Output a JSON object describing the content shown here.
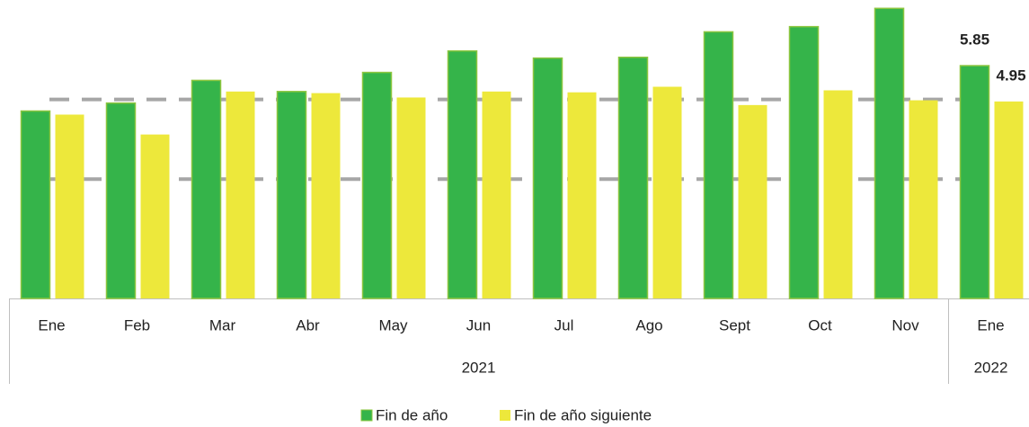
{
  "chart_data": {
    "type": "bar",
    "categories": [
      "Ene",
      "Feb",
      "Mar",
      "Abr",
      "May",
      "Jun",
      "Jul",
      "Ago",
      "Sept",
      "Oct",
      "Nov",
      "Ene"
    ],
    "groups": [
      {
        "label": "2021",
        "span": 11
      },
      {
        "label": "2022",
        "span": 1
      }
    ],
    "series": [
      {
        "name": "Fin de año",
        "color": "#35b44a",
        "values": [
          4.71,
          4.91,
          5.48,
          5.2,
          5.68,
          6.22,
          6.04,
          6.06,
          6.7,
          6.83,
          7.29,
          5.85
        ],
        "value_labels": [
          null,
          null,
          null,
          null,
          null,
          null,
          null,
          null,
          null,
          null,
          null,
          "5.85"
        ]
      },
      {
        "name": "Fin de año siguiente",
        "color": "#ede83b",
        "values": [
          4.62,
          4.12,
          5.2,
          5.16,
          5.05,
          5.2,
          5.18,
          5.32,
          4.86,
          5.23,
          4.98,
          4.95
        ],
        "value_labels": [
          null,
          null,
          null,
          null,
          null,
          null,
          null,
          null,
          null,
          null,
          null,
          "4.95"
        ]
      }
    ],
    "reference_lines": [
      3,
      5
    ],
    "ylim": [
      0,
      7.5
    ],
    "legend": "bottom"
  }
}
